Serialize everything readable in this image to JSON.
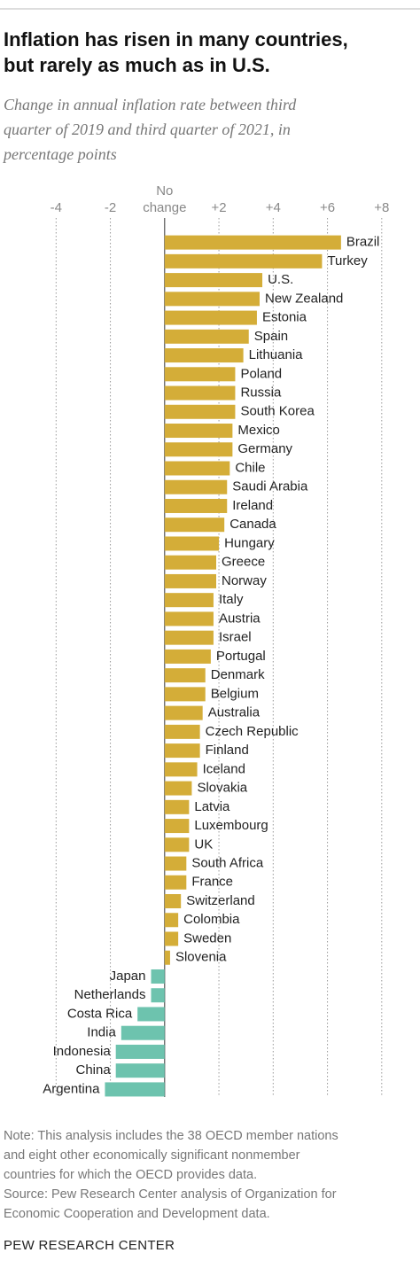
{
  "chart_data": {
    "type": "bar",
    "orientation": "horizontal",
    "title": [
      "Inflation has risen in many countries,",
      "but rarely as much as in U.S."
    ],
    "subtitle": [
      "Change in annual inflation rate between third",
      "quarter of 2019 and third quarter of 2021, in",
      "percentage points"
    ],
    "categories": [
      "Brazil",
      "Turkey",
      "U.S.",
      "New Zealand",
      "Estonia",
      "Spain",
      "Lithuania",
      "Poland",
      "Russia",
      "South Korea",
      "Mexico",
      "Germany",
      "Chile",
      "Saudi Arabia",
      "Ireland",
      "Canada",
      "Hungary",
      "Greece",
      "Norway",
      "Italy",
      "Austria",
      "Israel",
      "Portugal",
      "Denmark",
      "Belgium",
      "Australia",
      "Czech Republic",
      "Finland",
      "Iceland",
      "Slovakia",
      "Latvia",
      "Luxembourg",
      "UK",
      "South Africa",
      "France",
      "Switzerland",
      "Colombia",
      "Sweden",
      "Slovenia",
      "Japan",
      "Netherlands",
      "Costa Rica",
      "India",
      "Indonesia",
      "China",
      "Argentina"
    ],
    "values": [
      6.5,
      5.8,
      3.6,
      3.5,
      3.4,
      3.1,
      2.9,
      2.6,
      2.6,
      2.6,
      2.5,
      2.5,
      2.4,
      2.3,
      2.3,
      2.2,
      2.0,
      1.9,
      1.9,
      1.8,
      1.8,
      1.8,
      1.7,
      1.5,
      1.5,
      1.4,
      1.3,
      1.3,
      1.2,
      1.0,
      0.9,
      0.9,
      0.9,
      0.8,
      0.8,
      0.6,
      0.5,
      0.5,
      0.2,
      -0.5,
      -0.5,
      -1.0,
      -1.6,
      -1.8,
      -1.8,
      -2.2
    ],
    "colors": {
      "positive": "#d4ad38",
      "negative": "#6dc3ae"
    },
    "xlim": [
      -4.5,
      8.3
    ],
    "xticks": [
      -4,
      -2,
      {
        "value": 0,
        "label": "No change"
      },
      {
        "value": 2,
        "label": "+2"
      },
      {
        "value": 4,
        "label": "+4"
      },
      {
        "value": 6,
        "label": "+6"
      },
      {
        "value": 8,
        "label": "+8"
      }
    ],
    "grid": true,
    "note": [
      "Note: This analysis includes the 38 OECD member nations",
      "and eight other economically significant nonmember",
      "countries for which the OECD provides data.",
      "Source: Pew Research Center analysis of Organization for",
      "Economic Cooperation and Development data."
    ],
    "brand": "PEW RESEARCH CENTER"
  }
}
